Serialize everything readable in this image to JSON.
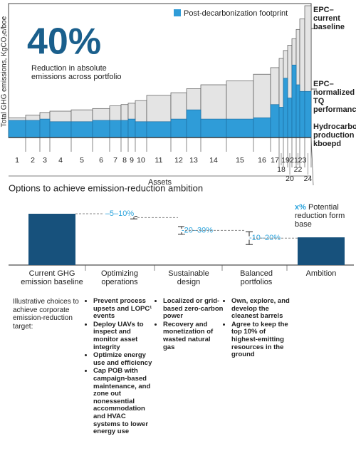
{
  "chart_data": [
    {
      "type": "step_area",
      "annotation_big": "40%",
      "annotation_text": "Reduction in absolute emissions across portfolio",
      "ylabel": "Total GHG emissions, KgCO₂e/boe",
      "xlabel": "Assets",
      "production_label": "Hydrocarbon production kboepd",
      "annotations": [
        "EPC–normalized TQ performance"
      ],
      "categories": [
        "1",
        "2",
        "3",
        "4",
        "5",
        "6",
        "7",
        "8",
        "9",
        "10",
        "11",
        "12",
        "13",
        "14",
        "15",
        "16",
        "17",
        "18",
        "19",
        "20",
        "21",
        "22",
        "23",
        "24"
      ],
      "production": [
        24,
        20,
        14,
        30,
        30,
        24,
        16,
        10,
        10,
        16,
        34,
        22,
        20,
        36,
        38,
        24,
        12,
        6,
        6,
        6,
        6,
        5,
        7,
        9
      ],
      "xlim": [
        0,
        425
      ],
      "ylim": [
        0,
        100
      ],
      "legend": "top-right",
      "series": [
        {
          "name": "EPC–current baseline",
          "color": "#e4e4e4",
          "legend": false,
          "values": [
            15,
            17,
            19,
            20,
            21,
            22,
            24,
            25,
            26,
            28,
            32,
            34,
            37,
            40,
            43,
            48,
            53,
            60,
            66,
            70,
            75,
            82,
            90,
            100
          ]
        },
        {
          "name": "Post-decarbonization footprint",
          "color": "#2f9cd8",
          "legend": true,
          "values": [
            13,
            13,
            14,
            12,
            12,
            13,
            13,
            13,
            14,
            12,
            12,
            14,
            21,
            14,
            14,
            15,
            25,
            23,
            45,
            30,
            55,
            40,
            35,
            35
          ]
        }
      ]
    },
    {
      "type": "waterfall",
      "title": "Options to achieve emission-reduction ambition",
      "categories": [
        "Current GHG emission baseline",
        "Optimizing operations",
        "Sustainable design",
        "Balanced portfolios",
        "Ambition"
      ],
      "values": [
        100,
        null,
        null,
        null,
        54
      ],
      "reductions": [
        null,
        [
          5,
          10
        ],
        [
          20,
          30
        ],
        [
          10,
          20
        ],
        null
      ],
      "reduction_labels": [
        null,
        "–5–10%",
        "-20–30%",
        "-10–20%",
        null
      ],
      "color": "#17517c",
      "label_color": "#2ba3dc",
      "ylim": [
        0,
        100
      ],
      "ambition_note": {
        "highlight": "x%",
        "text": "Potential reduction form base"
      }
    }
  ],
  "choices": {
    "intro": "Illustrative choices to achieve corporate emission-reduction target:",
    "columns": [
      [
        "Prevent process upsets and LOPC¹ events",
        "Deploy UAVs to inspect and monitor asset integrity",
        "Optimize energy use and efficiency",
        "Cap POB with campaign-based maintenance, and zone out nonessential accommodation and HVAC systems to lower energy use"
      ],
      [
        "Localized or grid-based zero-carbon power",
        "Recovery and monetization of wasted natural gas"
      ],
      [
        "Own, explore, and develop the cleanest barrels",
        "Agree to keep the top 10% of highest-emitting resources in the ground"
      ]
    ]
  }
}
